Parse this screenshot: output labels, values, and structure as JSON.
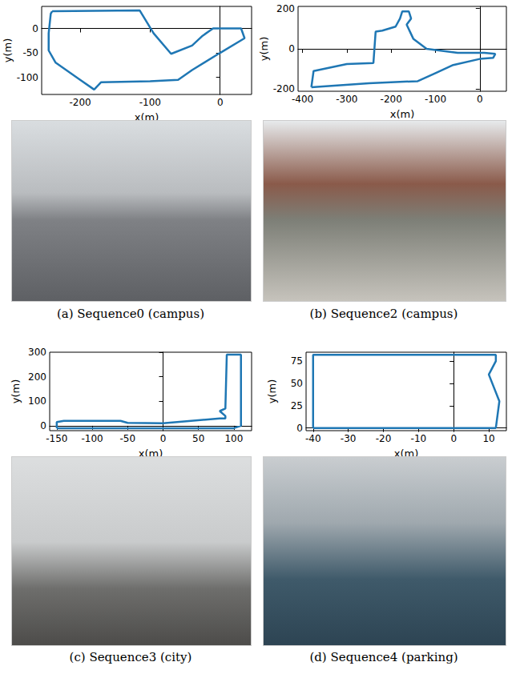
{
  "chart_data": [
    {
      "type": "line",
      "caption": "(a) Sequence0 (campus)",
      "xlabel": "x(m)",
      "ylabel": "y(m)",
      "color": "#1f77b4",
      "x": [
        -240,
        -115,
        -95,
        -70,
        -40,
        -25,
        -15,
        -10,
        30,
        35,
        0,
        -40,
        -60,
        -100,
        -170,
        -180,
        -200,
        -235,
        -245,
        -245,
        -242,
        -240
      ],
      "y": [
        35,
        37,
        -10,
        -52,
        -35,
        -15,
        -5,
        0,
        0,
        -20,
        -50,
        -85,
        -105,
        -108,
        -110,
        -125,
        -105,
        -70,
        -45,
        -10,
        30,
        35
      ],
      "xlim": [
        -255,
        45
      ],
      "ylim": [
        -135,
        45
      ],
      "xticks": [
        -200,
        -100,
        0
      ],
      "yticks": [
        -100,
        -50,
        0
      ]
    },
    {
      "type": "line",
      "caption": "(b) Sequence2 (campus)",
      "xlabel": "x(m)",
      "ylabel": "y(m)",
      "color": "#1f77b4",
      "x": [
        -380,
        -250,
        -140,
        -100,
        -60,
        0,
        30,
        35,
        10,
        -50,
        -120,
        -150,
        -165,
        -155,
        -160,
        -175,
        -180,
        -190,
        -220,
        -235,
        -240,
        -300,
        -375,
        -380
      ],
      "y": [
        -190,
        -170,
        -160,
        -120,
        -80,
        -50,
        -45,
        -25,
        -20,
        -20,
        0,
        50,
        120,
        150,
        185,
        185,
        150,
        110,
        90,
        85,
        -70,
        -75,
        -110,
        -190
      ],
      "xlim": [
        -410,
        60
      ],
      "ylim": [
        -210,
        210
      ],
      "xticks": [
        -400,
        -300,
        -200,
        -100,
        0
      ],
      "yticks": [
        -200,
        0,
        200
      ]
    },
    {
      "type": "line",
      "caption": "(c) Sequence3 (city)",
      "xlabel": "x(m)",
      "ylabel": "y(m)",
      "color": "#1f77b4",
      "x": [
        -150,
        100,
        110,
        110,
        90,
        88,
        80,
        88,
        88,
        80,
        0,
        -50,
        -60,
        -140,
        -150,
        -150
      ],
      "y": [
        -10,
        -10,
        0,
        290,
        290,
        70,
        60,
        40,
        30,
        30,
        10,
        12,
        20,
        20,
        15,
        -10
      ],
      "xlim": [
        -160,
        125
      ],
      "ylim": [
        -20,
        300
      ],
      "xticks": [
        -150,
        -100,
        -50,
        0,
        50,
        100
      ],
      "yticks": [
        0,
        100,
        200,
        300
      ]
    },
    {
      "type": "line",
      "caption": "(d) Sequence4 (parking)",
      "xlabel": "x(m)",
      "ylabel": "y(m)",
      "color": "#1f77b4",
      "x": [
        -40,
        12,
        13,
        10,
        12,
        12,
        -40,
        -40
      ],
      "y": [
        0,
        0,
        30,
        60,
        75,
        82,
        82,
        0
      ],
      "xlim": [
        -42,
        15
      ],
      "ylim": [
        -3,
        85
      ],
      "xticks": [
        -40,
        -30,
        -20,
        -10,
        0,
        10
      ],
      "yticks": [
        0,
        25,
        50,
        75
      ]
    }
  ]
}
